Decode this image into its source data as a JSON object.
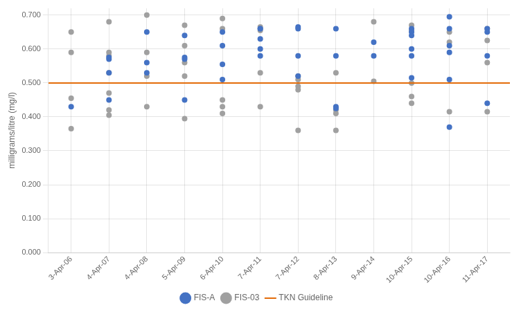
{
  "chart_data": {
    "type": "scatter",
    "ylabel": "milligrams/litre (mg/l)",
    "xlim": [
      -0.6,
      11.6
    ],
    "xticks": [
      {
        "value": 0,
        "label": "3-Apr-06"
      },
      {
        "value": 1,
        "label": "4-Apr-07"
      },
      {
        "value": 2,
        "label": "4-Apr-08"
      },
      {
        "value": 3,
        "label": "5-Apr-09"
      },
      {
        "value": 4,
        "label": "6-Apr-10"
      },
      {
        "value": 5,
        "label": "7-Apr-11"
      },
      {
        "value": 6,
        "label": "7-Apr-12"
      },
      {
        "value": 7,
        "label": "8-Apr-13"
      },
      {
        "value": 8,
        "label": "9-Apr-14"
      },
      {
        "value": 9,
        "label": "10-Apr-15"
      },
      {
        "value": 10,
        "label": "10-Apr-16"
      },
      {
        "value": 11,
        "label": "11-Apr-17"
      }
    ],
    "ylim": [
      0.0,
      0.72
    ],
    "yticks": [
      {
        "value": 0.0,
        "label": "0.000"
      },
      {
        "value": 0.1,
        "label": "0.100"
      },
      {
        "value": 0.2,
        "label": "0.200"
      },
      {
        "value": 0.3,
        "label": "0.300"
      },
      {
        "value": 0.4,
        "label": "0.400"
      },
      {
        "value": 0.5,
        "label": "0.500"
      },
      {
        "value": 0.6,
        "label": "0.600"
      },
      {
        "value": 0.7,
        "label": "0.700"
      }
    ],
    "grid": true,
    "legend": "bottom",
    "series": [
      {
        "name": "FIS-A",
        "type": "scatter",
        "color": "#4472C4",
        "x": [
          0,
          1,
          1,
          1,
          1,
          2,
          2,
          2,
          3,
          3,
          3,
          3,
          4,
          4,
          4,
          4,
          5,
          5,
          5,
          5,
          5,
          6,
          6,
          6,
          6,
          7,
          7,
          7,
          7,
          8,
          8,
          9,
          9,
          9,
          9,
          9,
          9,
          10,
          10,
          10,
          10,
          10,
          10,
          11,
          11,
          11,
          11
        ],
        "values": [
          0.43,
          0.53,
          0.57,
          0.575,
          0.45,
          0.65,
          0.56,
          0.53,
          0.64,
          0.575,
          0.57,
          0.45,
          0.65,
          0.61,
          0.555,
          0.51,
          0.66,
          0.66,
          0.63,
          0.6,
          0.58,
          0.665,
          0.66,
          0.58,
          0.52,
          0.66,
          0.58,
          0.43,
          0.425,
          0.62,
          0.58,
          0.66,
          0.65,
          0.64,
          0.6,
          0.58,
          0.515,
          0.695,
          0.66,
          0.61,
          0.59,
          0.51,
          0.37,
          0.66,
          0.65,
          0.58,
          0.44
        ]
      },
      {
        "name": "FIS-03",
        "type": "scatter",
        "color": "#A0A0A0",
        "x": [
          0,
          0,
          0,
          0,
          1,
          1,
          1,
          1,
          1,
          1,
          1,
          2,
          2,
          2,
          2,
          3,
          3,
          3,
          3,
          3,
          4,
          4,
          4,
          4,
          4,
          5,
          5,
          5,
          5,
          6,
          6,
          6,
          6,
          6,
          7,
          7,
          7,
          7,
          8,
          8,
          9,
          9,
          9,
          9,
          9,
          10,
          10,
          10,
          11,
          11,
          11,
          11
        ],
        "values": [
          0.65,
          0.59,
          0.455,
          0.365,
          0.68,
          0.59,
          0.58,
          0.53,
          0.47,
          0.42,
          0.405,
          0.7,
          0.59,
          0.52,
          0.43,
          0.67,
          0.61,
          0.56,
          0.52,
          0.395,
          0.69,
          0.66,
          0.45,
          0.43,
          0.41,
          0.665,
          0.655,
          0.53,
          0.43,
          0.52,
          0.51,
          0.49,
          0.48,
          0.36,
          0.53,
          0.42,
          0.41,
          0.36,
          0.68,
          0.505,
          0.67,
          0.655,
          0.5,
          0.46,
          0.44,
          0.65,
          0.62,
          0.415,
          0.66,
          0.625,
          0.56,
          0.415
        ]
      },
      {
        "name": "TKN Guideline",
        "type": "line",
        "color": "#E36C09",
        "x": [
          -0.6,
          11.6
        ],
        "values": [
          0.5,
          0.5
        ]
      }
    ]
  }
}
